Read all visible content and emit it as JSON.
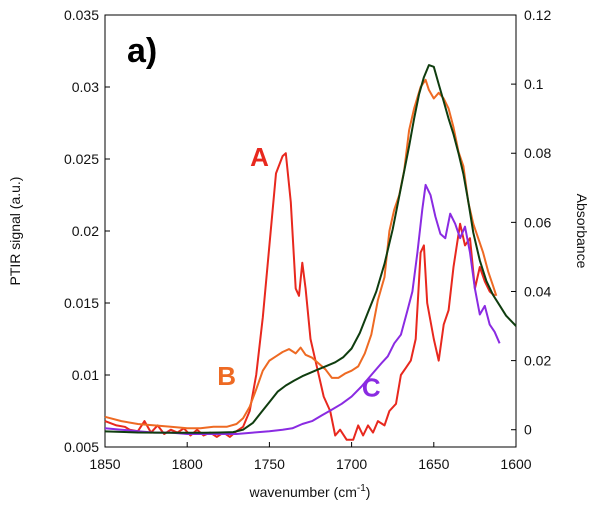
{
  "chart_data": {
    "type": "line",
    "panel_label": "a)",
    "xlabel": "wavenumber (cm",
    "xlabel_sup": "-1",
    "xlabel_suffix": ")",
    "ylabel_left": "PTIR signal (a.u.)",
    "ylabel_right": "Absorbance",
    "xlim": [
      1850,
      1600
    ],
    "ylim_left": [
      0.005,
      0.035
    ],
    "ylim_right": [
      -0.005,
      0.12
    ],
    "x_ticks": [
      1850,
      1800,
      1750,
      1700,
      1650,
      1600
    ],
    "x_tick_labels": [
      "1850",
      "1800",
      "1750",
      "1700",
      "1650",
      "1600"
    ],
    "y_left_ticks": [
      0.005,
      0.01,
      0.015,
      0.02,
      0.025,
      0.03,
      0.035
    ],
    "y_left_tick_labels": [
      "0.005",
      "0.01",
      "0.015",
      "0.02",
      "0.025",
      "0.03",
      "0.035"
    ],
    "y_right_ticks": [
      0,
      0.02,
      0.04,
      0.06,
      0.08,
      0.1,
      0.12
    ],
    "y_right_tick_labels": [
      "0",
      "0.02",
      "0.04",
      "0.06",
      "0.08",
      "0.1",
      "0.12"
    ],
    "series": [
      {
        "name": "A",
        "color": "#e8281e",
        "axis": "left",
        "label_at": [
          1756,
          0.0245
        ],
        "points": [
          [
            1850,
            0.0068
          ],
          [
            1843,
            0.0065
          ],
          [
            1838,
            0.0064
          ],
          [
            1835,
            0.0062
          ],
          [
            1830,
            0.0061
          ],
          [
            1826,
            0.0068
          ],
          [
            1822,
            0.006
          ],
          [
            1818,
            0.0065
          ],
          [
            1814,
            0.0059
          ],
          [
            1810,
            0.0062
          ],
          [
            1806,
            0.006
          ],
          [
            1802,
            0.0063
          ],
          [
            1798,
            0.0058
          ],
          [
            1794,
            0.0062
          ],
          [
            1790,
            0.0058
          ],
          [
            1786,
            0.006
          ],
          [
            1782,
            0.0057
          ],
          [
            1778,
            0.006
          ],
          [
            1774,
            0.0057
          ],
          [
            1770,
            0.0061
          ],
          [
            1766,
            0.0064
          ],
          [
            1762,
            0.0075
          ],
          [
            1758,
            0.01
          ],
          [
            1754,
            0.014
          ],
          [
            1750,
            0.019
          ],
          [
            1746,
            0.024
          ],
          [
            1742,
            0.0252
          ],
          [
            1740,
            0.0254
          ],
          [
            1737,
            0.022
          ],
          [
            1734,
            0.016
          ],
          [
            1732,
            0.0155
          ],
          [
            1730,
            0.0178
          ],
          [
            1728,
            0.016
          ],
          [
            1725,
            0.0125
          ],
          [
            1721,
            0.0105
          ],
          [
            1717,
            0.0085
          ],
          [
            1713,
            0.0075
          ],
          [
            1710,
            0.0058
          ],
          [
            1707,
            0.0062
          ],
          [
            1703,
            0.0055
          ],
          [
            1699,
            0.0055
          ],
          [
            1696,
            0.0065
          ],
          [
            1693,
            0.0058
          ],
          [
            1690,
            0.0065
          ],
          [
            1687,
            0.006
          ],
          [
            1684,
            0.0068
          ],
          [
            1680,
            0.0065
          ],
          [
            1677,
            0.0075
          ],
          [
            1673,
            0.008
          ],
          [
            1670,
            0.01
          ],
          [
            1667,
            0.0105
          ],
          [
            1664,
            0.011
          ],
          [
            1661,
            0.0125
          ],
          [
            1658,
            0.0185
          ],
          [
            1656,
            0.019
          ],
          [
            1654,
            0.015
          ],
          [
            1650,
            0.0125
          ],
          [
            1647,
            0.011
          ],
          [
            1644,
            0.0135
          ],
          [
            1641,
            0.0145
          ],
          [
            1638,
            0.0175
          ],
          [
            1636,
            0.019
          ],
          [
            1634,
            0.0205
          ],
          [
            1631,
            0.019
          ],
          [
            1628,
            0.0195
          ],
          [
            1625,
            0.016
          ],
          [
            1622,
            0.0175
          ],
          [
            1619,
            0.0165
          ],
          [
            1616,
            0.0158
          ],
          [
            1613,
            0.0155
          ]
        ]
      },
      {
        "name": "B",
        "color": "#ee6a23",
        "axis": "left",
        "label_at": [
          1776,
          0.0093
        ],
        "points": [
          [
            1850,
            0.0071
          ],
          [
            1840,
            0.0068
          ],
          [
            1830,
            0.0066
          ],
          [
            1820,
            0.0065
          ],
          [
            1810,
            0.0064
          ],
          [
            1800,
            0.0063
          ],
          [
            1792,
            0.0063
          ],
          [
            1784,
            0.0064
          ],
          [
            1776,
            0.0064
          ],
          [
            1770,
            0.0066
          ],
          [
            1766,
            0.007
          ],
          [
            1762,
            0.0078
          ],
          [
            1758,
            0.009
          ],
          [
            1754,
            0.0103
          ],
          [
            1750,
            0.011
          ],
          [
            1746,
            0.0113
          ],
          [
            1742,
            0.0116
          ],
          [
            1738,
            0.0118
          ],
          [
            1734,
            0.0115
          ],
          [
            1731,
            0.0119
          ],
          [
            1728,
            0.0114
          ],
          [
            1724,
            0.0112
          ],
          [
            1720,
            0.0108
          ],
          [
            1716,
            0.0104
          ],
          [
            1712,
            0.0098
          ],
          [
            1708,
            0.0098
          ],
          [
            1704,
            0.0101
          ],
          [
            1700,
            0.0103
          ],
          [
            1696,
            0.0106
          ],
          [
            1692,
            0.0115
          ],
          [
            1688,
            0.0128
          ],
          [
            1684,
            0.0152
          ],
          [
            1680,
            0.0168
          ],
          [
            1677,
            0.02
          ],
          [
            1674,
            0.0215
          ],
          [
            1671,
            0.0225
          ],
          [
            1668,
            0.0242
          ],
          [
            1665,
            0.027
          ],
          [
            1662,
            0.0285
          ],
          [
            1658,
            0.03
          ],
          [
            1655,
            0.0305
          ],
          [
            1653,
            0.0298
          ],
          [
            1650,
            0.0292
          ],
          [
            1647,
            0.0296
          ],
          [
            1644,
            0.0292
          ],
          [
            1641,
            0.0285
          ],
          [
            1638,
            0.0272
          ],
          [
            1635,
            0.0255
          ],
          [
            1632,
            0.0245
          ],
          [
            1629,
            0.022
          ],
          [
            1626,
            0.0205
          ],
          [
            1623,
            0.0195
          ],
          [
            1620,
            0.0185
          ],
          [
            1617,
            0.0172
          ],
          [
            1614,
            0.0162
          ],
          [
            1612,
            0.0155
          ]
        ]
      },
      {
        "name": "C",
        "color": "#8a2be2",
        "axis": "left",
        "label_at": [
          1688,
          0.0085
        ],
        "points": [
          [
            1850,
            0.0063
          ],
          [
            1840,
            0.0062
          ],
          [
            1830,
            0.0061
          ],
          [
            1820,
            0.006
          ],
          [
            1810,
            0.006
          ],
          [
            1800,
            0.0059
          ],
          [
            1790,
            0.0059
          ],
          [
            1780,
            0.0059
          ],
          [
            1770,
            0.0059
          ],
          [
            1760,
            0.006
          ],
          [
            1750,
            0.0061
          ],
          [
            1742,
            0.0062
          ],
          [
            1736,
            0.0063
          ],
          [
            1730,
            0.0066
          ],
          [
            1724,
            0.0068
          ],
          [
            1718,
            0.0072
          ],
          [
            1712,
            0.0076
          ],
          [
            1706,
            0.008
          ],
          [
            1700,
            0.0085
          ],
          [
            1694,
            0.0092
          ],
          [
            1688,
            0.01
          ],
          [
            1682,
            0.0108
          ],
          [
            1678,
            0.0113
          ],
          [
            1674,
            0.0122
          ],
          [
            1670,
            0.0128
          ],
          [
            1666,
            0.0145
          ],
          [
            1663,
            0.0158
          ],
          [
            1660,
            0.0185
          ],
          [
            1657,
            0.0215
          ],
          [
            1655,
            0.0232
          ],
          [
            1652,
            0.0225
          ],
          [
            1649,
            0.021
          ],
          [
            1646,
            0.0198
          ],
          [
            1643,
            0.0195
          ],
          [
            1640,
            0.0212
          ],
          [
            1637,
            0.0205
          ],
          [
            1634,
            0.0195
          ],
          [
            1631,
            0.0203
          ],
          [
            1628,
            0.0185
          ],
          [
            1625,
            0.016
          ],
          [
            1622,
            0.0142
          ],
          [
            1619,
            0.0148
          ],
          [
            1616,
            0.0135
          ],
          [
            1613,
            0.013
          ],
          [
            1610,
            0.0122
          ]
        ]
      },
      {
        "name": "",
        "color": "#0f3d0f",
        "axis": "right",
        "points": [
          [
            1850,
            -0.0005
          ],
          [
            1830,
            -0.0008
          ],
          [
            1810,
            -0.0009
          ],
          [
            1790,
            -0.0009
          ],
          [
            1780,
            -0.0008
          ],
          [
            1772,
            -0.0007
          ],
          [
            1766,
            0.0
          ],
          [
            1760,
            0.002
          ],
          [
            1755,
            0.005
          ],
          [
            1750,
            0.008
          ],
          [
            1745,
            0.011
          ],
          [
            1740,
            0.0128
          ],
          [
            1735,
            0.0142
          ],
          [
            1730,
            0.0155
          ],
          [
            1725,
            0.0165
          ],
          [
            1720,
            0.0175
          ],
          [
            1715,
            0.0185
          ],
          [
            1710,
            0.0195
          ],
          [
            1705,
            0.021
          ],
          [
            1700,
            0.0235
          ],
          [
            1695,
            0.028
          ],
          [
            1690,
            0.034
          ],
          [
            1685,
            0.04
          ],
          [
            1680,
            0.048
          ],
          [
            1675,
            0.058
          ],
          [
            1670,
            0.07
          ],
          [
            1665,
            0.082
          ],
          [
            1662,
            0.09
          ],
          [
            1659,
            0.097
          ],
          [
            1656,
            0.102
          ],
          [
            1653,
            0.1055
          ],
          [
            1650,
            0.105
          ],
          [
            1647,
            0.1
          ],
          [
            1644,
            0.095
          ],
          [
            1641,
            0.09
          ],
          [
            1638,
            0.0855
          ],
          [
            1635,
            0.08
          ],
          [
            1632,
            0.074
          ],
          [
            1629,
            0.066
          ],
          [
            1626,
            0.057
          ],
          [
            1622,
            0.049
          ],
          [
            1618,
            0.043
          ],
          [
            1614,
            0.039
          ],
          [
            1610,
            0.036
          ],
          [
            1606,
            0.033
          ],
          [
            1602,
            0.031
          ],
          [
            1600,
            0.03
          ]
        ]
      }
    ]
  }
}
